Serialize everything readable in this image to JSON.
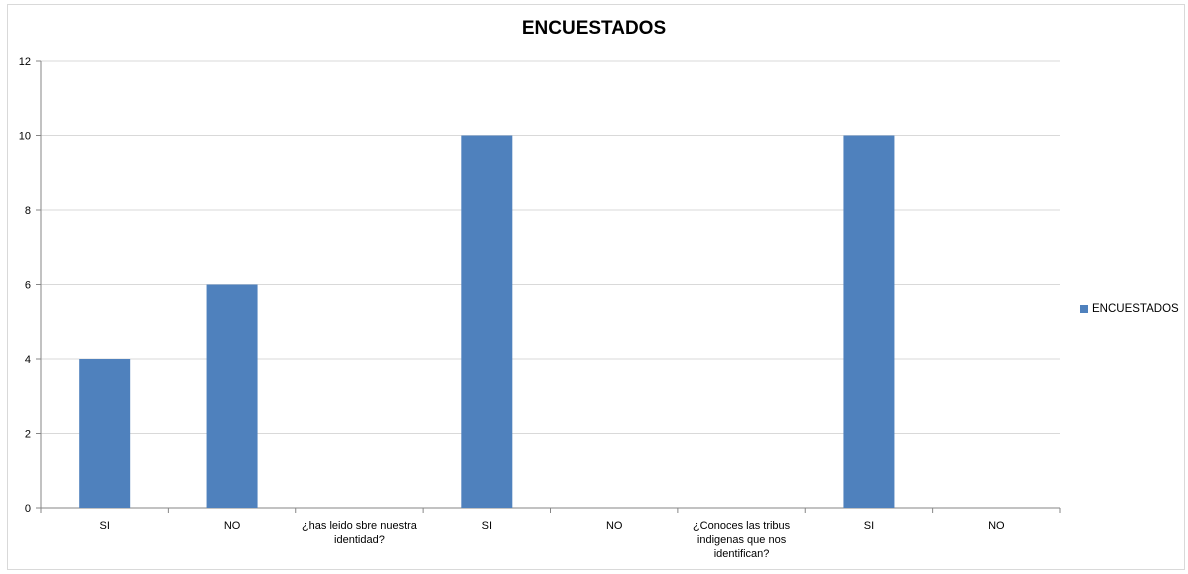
{
  "chart_data": {
    "type": "bar",
    "title": "ENCUESTADOS",
    "xlabel": "",
    "ylabel": "",
    "ylim": [
      0,
      12
    ],
    "yticks": [
      "0",
      "2",
      "4",
      "6",
      "8",
      "10",
      "12"
    ],
    "grid": true,
    "legend_position": "right",
    "categories": [
      [
        "SI"
      ],
      [
        "NO"
      ],
      [
        "¿has leido sbre nuestra",
        "identidad?"
      ],
      [
        "SI"
      ],
      [
        "NO"
      ],
      [
        "¿Conoces las tribus",
        "indigenas que nos",
        "identifican?"
      ],
      [
        "SI"
      ],
      [
        "NO"
      ]
    ],
    "series": [
      {
        "name": "ENCUESTADOS",
        "color": "#4f81bd",
        "values": [
          4,
          6,
          null,
          10,
          null,
          null,
          10,
          null
        ]
      }
    ]
  }
}
